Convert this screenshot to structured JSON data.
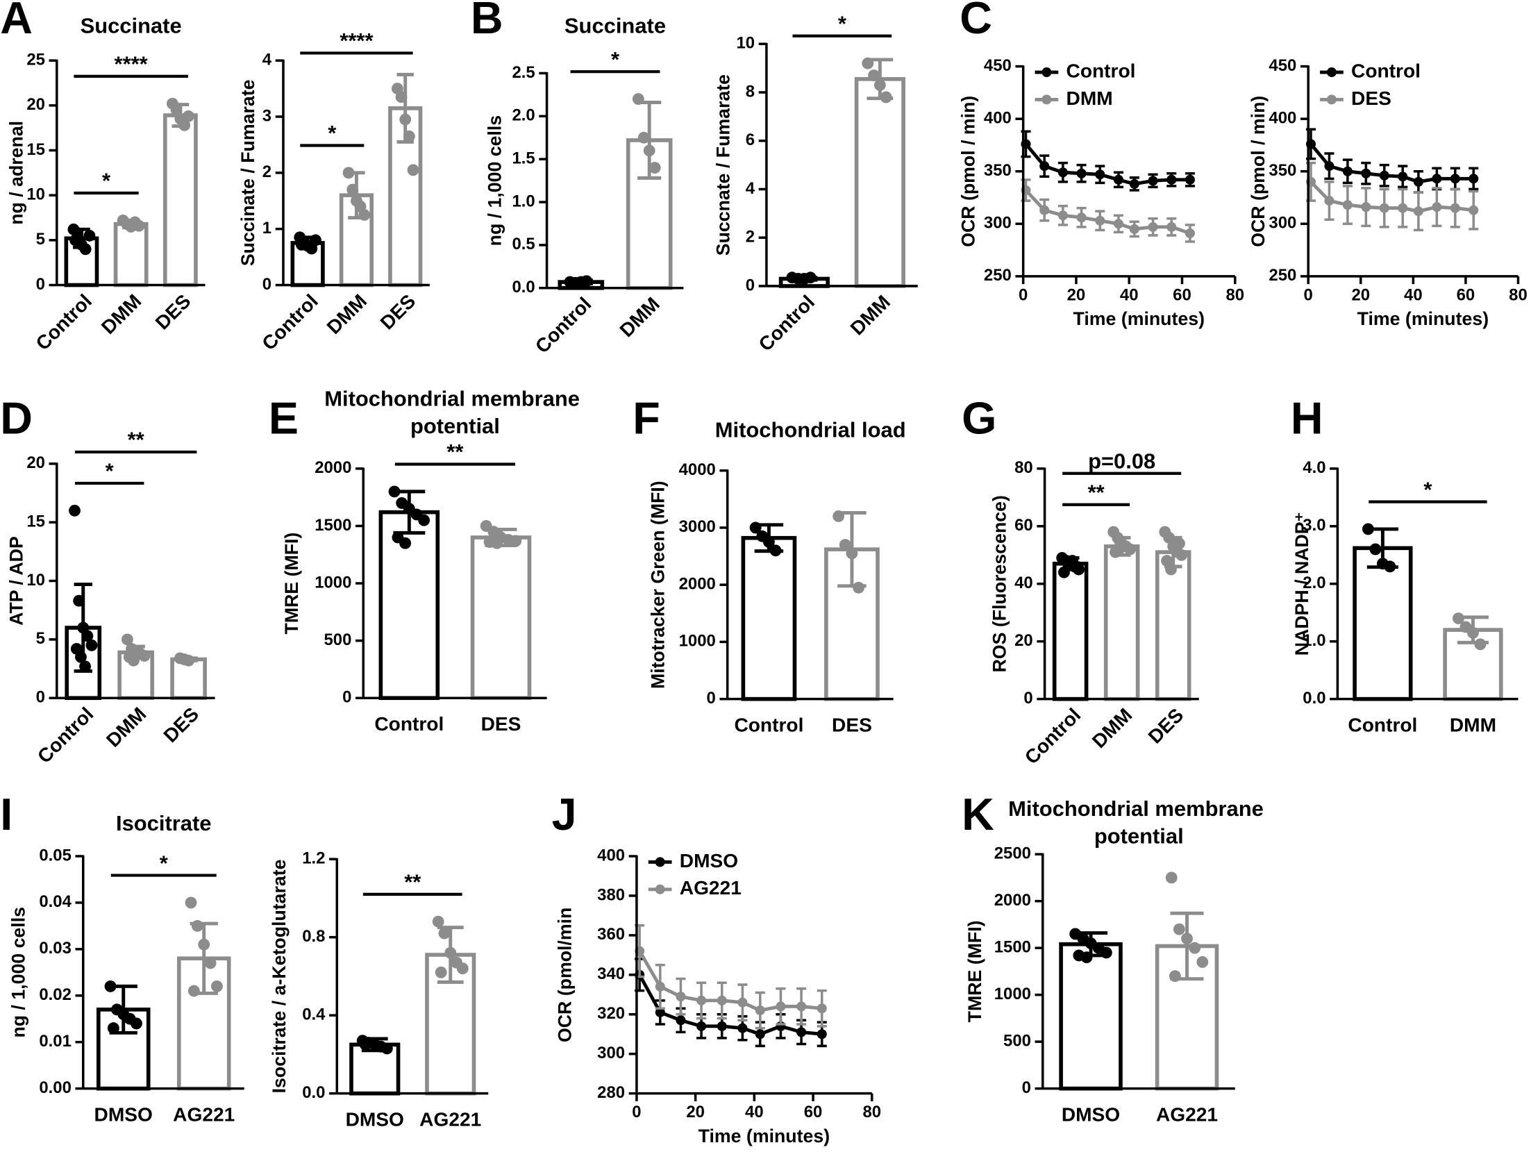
{
  "chart_data": [
    {
      "type": "bar",
      "panel": "A",
      "title": "Succinate",
      "ylabel": "ng / adrenal",
      "categories": [
        "Control",
        "DMM",
        "DES"
      ],
      "colors": [
        "#000000",
        "#8c8c8c",
        "#8c8c8c"
      ],
      "values": [
        5.2,
        6.8,
        18.9
      ],
      "errors": [
        1.0,
        0.4,
        1.2
      ],
      "points": [
        [
          6.2,
          5.8,
          4.5,
          4.0,
          5.5,
          5.0
        ],
        [
          7.2,
          6.8,
          6.5,
          7.0,
          6.6
        ],
        [
          20.2,
          19.5,
          18.5,
          17.8,
          18.8
        ]
      ],
      "ylim": [
        0,
        25
      ],
      "yticks": [
        0,
        5,
        10,
        15,
        20,
        25
      ],
      "annotations": [
        {
          "text": "*",
          "from": 0,
          "to": 1
        },
        {
          "text": "****",
          "from": 0,
          "to": 2
        }
      ]
    },
    {
      "type": "bar",
      "ylabel": "Succinate / Fumarate",
      "categories": [
        "Control",
        "DMM",
        "DES"
      ],
      "colors": [
        "#000000",
        "#8c8c8c",
        "#8c8c8c"
      ],
      "values": [
        0.75,
        1.6,
        3.15
      ],
      "errors": [
        0.1,
        0.4,
        0.6
      ],
      "points": [
        [
          0.85,
          0.75,
          0.7,
          0.65,
          0.8,
          0.72
        ],
        [
          2.0,
          1.7,
          1.5,
          1.4,
          1.25
        ],
        [
          3.5,
          3.35,
          2.95,
          2.65,
          2.05
        ]
      ],
      "ylim": [
        0,
        4
      ],
      "yticks": [
        0,
        1,
        2,
        3,
        4
      ],
      "annotations": [
        {
          "text": "*",
          "from": 0,
          "to": 1
        },
        {
          "text": "****",
          "from": 0,
          "to": 2
        }
      ]
    },
    {
      "type": "bar",
      "panel": "B",
      "title": "Succinate",
      "ylabel": "ng / 1,000 cells",
      "categories": [
        "Control",
        "DMM"
      ],
      "colors": [
        "#000000",
        "#8c8c8c"
      ],
      "values": [
        0.07,
        1.72
      ],
      "errors": [
        0.02,
        0.44
      ],
      "points": [
        [
          0.07,
          0.06,
          0.07,
          0.08
        ],
        [
          2.2,
          1.75,
          1.6,
          1.4
        ]
      ],
      "ylim": [
        0,
        2.5
      ],
      "yticks": [
        {
          "value": 0,
          "label": "0.0"
        },
        0.5,
        {
          "value": 1,
          "label": "1.0"
        },
        1.5,
        {
          "value": 2,
          "label": "2.0"
        },
        2.5
      ],
      "annotations": [
        {
          "text": "*",
          "from": 0,
          "to": 1
        }
      ]
    },
    {
      "type": "bar",
      "ylabel": "Succnate / Fumarate",
      "categories": [
        "Control",
        "DMM"
      ],
      "colors": [
        "#000000",
        "#8c8c8c"
      ],
      "values": [
        0.3,
        8.55
      ],
      "errors": [
        0.05,
        0.8
      ],
      "points": [
        [
          0.35,
          0.3,
          0.3,
          0.35
        ],
        [
          9.2,
          8.7,
          8.3,
          7.8
        ]
      ],
      "ylim": [
        0,
        10
      ],
      "yticks": [
        0,
        2,
        4,
        6,
        8,
        10
      ],
      "annotations": [
        {
          "text": "*",
          "from": 0,
          "to": 1
        }
      ]
    },
    {
      "type": "line",
      "panel": "C",
      "ylabel": "OCR (pmol / min)",
      "xlabel": "Time (minutes)",
      "x": [
        1,
        8,
        15,
        22,
        29,
        36,
        42,
        49,
        56,
        63
      ],
      "xlim": [
        0,
        80
      ],
      "xticks": [
        0,
        20,
        40,
        60,
        80
      ],
      "ylim": [
        250,
        450
      ],
      "yticks": [
        250,
        300,
        350,
        400,
        450
      ],
      "series": [
        {
          "name": "Control",
          "color": "#000000",
          "values": [
            376,
            355,
            349,
            348,
            347,
            342,
            338,
            341,
            342,
            342
          ],
          "errors": [
            12,
            10,
            9,
            8,
            8,
            7,
            6,
            6,
            6,
            6
          ]
        },
        {
          "name": "DMM",
          "color": "#8c8c8c",
          "values": [
            332,
            313,
            308,
            306,
            303,
            300,
            295,
            297,
            297,
            291
          ],
          "errors": [
            10,
            10,
            9,
            9,
            9,
            8,
            7,
            8,
            8,
            8
          ]
        }
      ]
    },
    {
      "type": "line",
      "ylabel": "OCR (pmol / min)",
      "xlabel": "Time (minutes)",
      "x": [
        1,
        8,
        15,
        22,
        29,
        36,
        42,
        49,
        56,
        63
      ],
      "xlim": [
        0,
        80
      ],
      "xticks": [
        0,
        20,
        40,
        60,
        80
      ],
      "ylim": [
        250,
        450
      ],
      "yticks": [
        250,
        300,
        350,
        400,
        450
      ],
      "series": [
        {
          "name": "Control",
          "color": "#000000",
          "values": [
            376,
            355,
            350,
            348,
            346,
            345,
            340,
            343,
            343,
            343
          ],
          "errors": [
            14,
            12,
            11,
            10,
            10,
            10,
            10,
            10,
            10,
            10
          ]
        },
        {
          "name": "DES",
          "color": "#8c8c8c",
          "values": [
            340,
            322,
            318,
            316,
            315,
            315,
            312,
            316,
            315,
            313
          ],
          "errors": [
            18,
            18,
            18,
            18,
            18,
            18,
            18,
            18,
            18,
            18
          ]
        }
      ]
    },
    {
      "type": "bar",
      "panel": "D",
      "ylabel": "ATP / ADP",
      "categories": [
        "Control",
        "DMM",
        "DES"
      ],
      "colors": [
        "#000000",
        "#8c8c8c",
        "#8c8c8c"
      ],
      "values": [
        6.0,
        3.9,
        3.3
      ],
      "errors": [
        3.7,
        0.5,
        0.1
      ],
      "points": [
        [
          16,
          8.3,
          6,
          5.3,
          4.5,
          4.2,
          3.5,
          2.7
        ],
        [
          5,
          4.2,
          4.0,
          3.8,
          3.6,
          3.5,
          3.2
        ],
        [
          3.4,
          3.3,
          3.2
        ]
      ],
      "ylim": [
        0,
        20
      ],
      "yticks": [
        0,
        5,
        10,
        15,
        20
      ],
      "annotations": [
        {
          "text": "*",
          "from": 0,
          "to": 1
        },
        {
          "text": "**",
          "from": 0,
          "to": 2
        }
      ]
    },
    {
      "type": "bar",
      "panel": "E",
      "title": "Mitochondrial membrane potential",
      "ylabel": "TMRE (MFI)",
      "categories": [
        "Control",
        "DES"
      ],
      "colors": [
        "#000000",
        "#8c8c8c"
      ],
      "values": [
        1620,
        1400
      ],
      "errors": [
        180,
        70
      ],
      "points": [
        [
          1800,
          1700,
          1650,
          1600,
          1550,
          1400,
          1350
        ],
        [
          1500,
          1450,
          1400,
          1380,
          1370,
          1360,
          1350
        ]
      ],
      "ylim": [
        0,
        2000
      ],
      "yticks": [
        0,
        500,
        1000,
        1500,
        2000
      ],
      "annotations": [
        {
          "text": "**",
          "from": 0,
          "to": 1
        }
      ]
    },
    {
      "type": "bar",
      "panel": "F",
      "title": "Mitochondrial load",
      "ylabel": "Mitotracker  Green (MFI)",
      "categories": [
        "Control",
        "DES"
      ],
      "colors": [
        "#000000",
        "#8c8c8c"
      ],
      "values": [
        2820,
        2620
      ],
      "errors": [
        230,
        640
      ],
      "points": [
        [
          3000,
          2850,
          2750,
          2600
        ],
        [
          3200,
          2700,
          2550,
          1950
        ]
      ],
      "ylim": [
        0,
        4000
      ],
      "yticks": [
        0,
        1000,
        2000,
        3000,
        4000
      ],
      "annotations": []
    },
    {
      "type": "bar",
      "panel": "G",
      "ylabel": "ROS (Fluorescence)",
      "categories": [
        "Control",
        "DMM",
        "DES"
      ],
      "colors": [
        "#000000",
        "#8c8c8c",
        "#8c8c8c"
      ],
      "values": [
        47,
        53,
        51
      ],
      "errors": [
        2,
        3,
        5
      ],
      "points": [
        [
          49,
          48,
          47,
          46,
          45,
          44,
          47,
          48,
          46
        ],
        [
          58,
          56,
          54,
          53,
          52,
          51,
          55,
          53
        ],
        [
          58,
          56,
          53,
          51,
          50,
          48,
          45,
          52,
          54
        ]
      ],
      "ylim": [
        0,
        80
      ],
      "yticks": [
        0,
        20,
        40,
        60,
        80
      ],
      "annotations": [
        {
          "text": "**",
          "from": 0,
          "to": 1
        },
        {
          "text": "p=0.08",
          "from": 0,
          "to": 2
        }
      ]
    },
    {
      "type": "bar",
      "panel": "H",
      "ylabel": "NADPH / NADP⁺",
      "categories": [
        "Control",
        "DMM"
      ],
      "colors": [
        "#000000",
        "#8c8c8c"
      ],
      "values": [
        2.62,
        1.2
      ],
      "errors": [
        0.33,
        0.22
      ],
      "points": [
        [
          2.95,
          2.6,
          2.35,
          2.3
        ],
        [
          1.4,
          1.25,
          1.15,
          0.95
        ]
      ],
      "ylim": [
        0,
        4
      ],
      "yticks": [
        {
          "value": 0,
          "label": "0.0"
        },
        {
          "value": 1,
          "label": "1.0"
        },
        {
          "value": 2,
          "label": "2.0"
        },
        {
          "value": 3,
          "label": "3.0"
        },
        {
          "value": 4,
          "label": "4.0"
        }
      ],
      "annotations": [
        {
          "text": "*",
          "from": 0,
          "to": 1
        }
      ]
    },
    {
      "type": "bar",
      "panel": "I",
      "title": "Isocitrate",
      "ylabel": "ng / 1,000 cells",
      "categories": [
        "DMSO",
        "AG221"
      ],
      "colors": [
        "#000000",
        "#8c8c8c"
      ],
      "values": [
        0.017,
        0.028
      ],
      "errors": [
        0.005,
        0.0075
      ],
      "points": [
        [
          0.022,
          0.017,
          0.016,
          0.015,
          0.014,
          0.013
        ],
        [
          0.04,
          0.035,
          0.031,
          0.027,
          0.022,
          0.021
        ]
      ],
      "ylim": [
        0,
        0.05
      ],
      "yticks": [
        {
          "value": 0,
          "label": "0.00"
        },
        0.01,
        0.02,
        0.03,
        0.04,
        0.05
      ],
      "annotations": [
        {
          "text": "*",
          "from": 0,
          "to": 1
        }
      ]
    },
    {
      "type": "bar",
      "ylabel": "Isocitrate / a-Ketoglutarate",
      "categories": [
        "DMSO",
        "AG221"
      ],
      "colors": [
        "#000000",
        "#8c8c8c"
      ],
      "values": [
        0.25,
        0.71
      ],
      "errors": [
        0.03,
        0.14
      ],
      "points": [
        [
          0.27,
          0.26,
          0.25,
          0.24,
          0.23,
          0.25
        ],
        [
          0.88,
          0.82,
          0.72,
          0.67,
          0.64,
          0.62
        ]
      ],
      "ylim": [
        0,
        1.2
      ],
      "yticks": [
        {
          "value": 0,
          "label": "0.0"
        },
        0.4,
        0.8,
        1.2
      ],
      "annotations": [
        {
          "text": "**",
          "from": 0,
          "to": 1
        }
      ]
    },
    {
      "type": "line",
      "panel": "J",
      "ylabel": "OCR (pmol/min",
      "xlabel": "Time (minutes)",
      "x": [
        1,
        8,
        15,
        22,
        29,
        36,
        42,
        49,
        56,
        63
      ],
      "xlim": [
        0,
        80
      ],
      "xticks": [
        0,
        20,
        40,
        60,
        80
      ],
      "ylim": [
        280,
        400
      ],
      "yticks": [
        280,
        300,
        320,
        340,
        360,
        380,
        400
      ],
      "series": [
        {
          "name": "DMSO",
          "color": "#000000",
          "values": [
            340,
            321,
            317,
            314,
            314,
            313,
            310,
            314,
            311,
            310
          ],
          "errors": [
            8,
            6,
            6,
            6,
            6,
            6,
            6,
            6,
            6,
            6
          ]
        },
        {
          "name": "AG221",
          "color": "#8c8c8c",
          "values": [
            352,
            334,
            329,
            327,
            327,
            326,
            322,
            324,
            324,
            323
          ],
          "errors": [
            13,
            11,
            9,
            9,
            9,
            9,
            9,
            9,
            9,
            9
          ]
        }
      ]
    },
    {
      "type": "bar",
      "panel": "K",
      "title": "Mitochondrial membrane potential",
      "ylabel": "TMRE (MFI)",
      "categories": [
        "DMSO",
        "AG221"
      ],
      "colors": [
        "#000000",
        "#8c8c8c"
      ],
      "values": [
        1540,
        1520
      ],
      "errors": [
        120,
        350
      ],
      "points": [
        [
          1650,
          1600,
          1550,
          1500,
          1450,
          1420,
          1400
        ],
        [
          2250,
          1700,
          1600,
          1500,
          1350,
          1200
        ]
      ],
      "ylim": [
        0,
        2500
      ],
      "yticks": [
        0,
        500,
        1000,
        1500,
        2000,
        2500
      ],
      "annotations": []
    }
  ]
}
